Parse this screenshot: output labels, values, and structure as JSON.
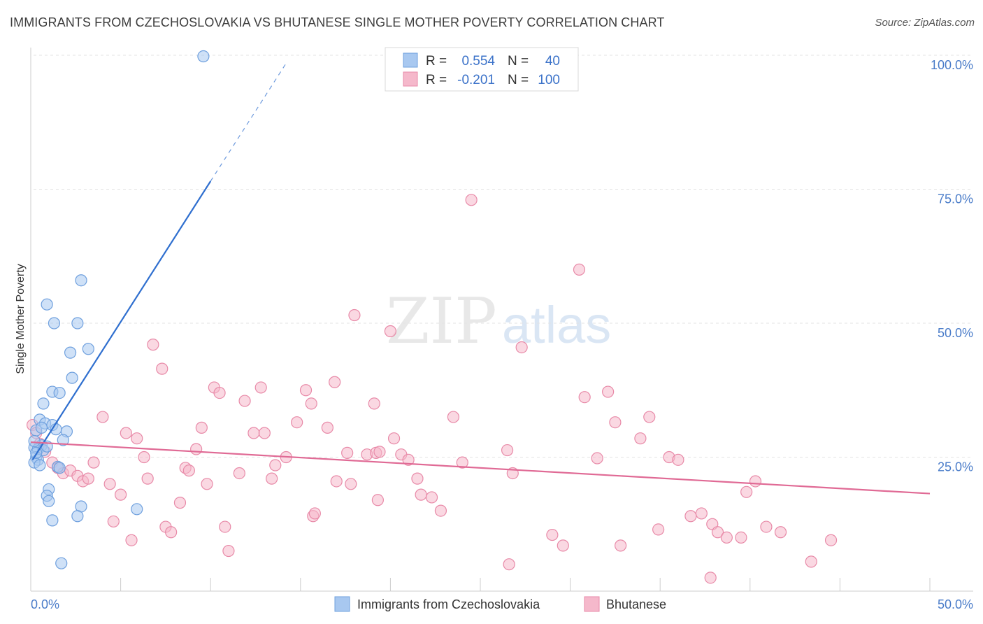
{
  "title": "IMMIGRANTS FROM CZECHOSLOVAKIA VS BHUTANESE SINGLE MOTHER POVERTY CORRELATION CHART",
  "source": "Source: ZipAtlas.com",
  "watermark": {
    "zip": "ZIP",
    "atlas": "atlas"
  },
  "colors": {
    "blue_fill": "#a8c8f0",
    "blue_stroke": "#6fa0de",
    "blue_line": "#2f6fcf",
    "pink_fill": "#f5b8cb",
    "pink_stroke": "#e88aa8",
    "pink_line": "#e06a95",
    "tick_text": "#4a7cc9",
    "grid": "#e3e3e3"
  },
  "legend": {
    "rows": [
      {
        "r_label": "R =",
        "r_value": "0.554",
        "n_label": "N =",
        "n_value": "40"
      },
      {
        "r_label": "R =",
        "r_value": "-0.201",
        "n_label": "N =",
        "n_value": "100"
      }
    ]
  },
  "chart_data": {
    "type": "scatter",
    "title": "IMMIGRANTS FROM CZECHOSLOVAKIA VS BHUTANESE SINGLE MOTHER POVERTY CORRELATION CHART",
    "xlabel": "",
    "ylabel": "Single Mother Poverty",
    "xlim": [
      0,
      50
    ],
    "ylim": [
      0,
      100
    ],
    "x_tick_labels": [
      "0.0%",
      "50.0%"
    ],
    "y_ticks": [
      25,
      50,
      75,
      100
    ],
    "y_tick_labels": [
      "25.0%",
      "50.0%",
      "75.0%",
      "100.0%"
    ],
    "grid": true,
    "legend_position": "top-center",
    "series": [
      {
        "name": "Immigrants from Czechoslovakia",
        "color": "#a8c8f0",
        "r": 0.554,
        "n": 40,
        "trend": {
          "x0": 0.1,
          "y0": 24.5,
          "x1": 10.0,
          "y1": 76.5,
          "dash_to_x": 14.2,
          "dash_to_y": 98.5
        },
        "points": [
          [
            9.6,
            99.8
          ],
          [
            2.8,
            58.0
          ],
          [
            0.9,
            53.5
          ],
          [
            1.3,
            50.0
          ],
          [
            2.6,
            50.0
          ],
          [
            2.2,
            44.5
          ],
          [
            3.2,
            45.2
          ],
          [
            2.3,
            39.8
          ],
          [
            1.2,
            37.2
          ],
          [
            1.6,
            37.0
          ],
          [
            0.7,
            35.0
          ],
          [
            0.5,
            32.0
          ],
          [
            0.8,
            31.3
          ],
          [
            1.2,
            31.0
          ],
          [
            1.4,
            30.2
          ],
          [
            2.0,
            29.8
          ],
          [
            0.3,
            30.0
          ],
          [
            1.8,
            28.2
          ],
          [
            0.6,
            27.2
          ],
          [
            0.2,
            26.8
          ],
          [
            0.4,
            26.5
          ],
          [
            0.7,
            26.3
          ],
          [
            0.3,
            25.0
          ],
          [
            0.4,
            24.5
          ],
          [
            0.2,
            24.0
          ],
          [
            0.5,
            23.5
          ],
          [
            1.5,
            23.2
          ],
          [
            1.0,
            19.0
          ],
          [
            0.9,
            17.8
          ],
          [
            1.0,
            16.8
          ],
          [
            2.8,
            15.8
          ],
          [
            5.9,
            15.3
          ],
          [
            2.6,
            14.0
          ],
          [
            1.2,
            13.2
          ],
          [
            1.7,
            5.2
          ],
          [
            0.2,
            28.0
          ],
          [
            0.9,
            27.0
          ],
          [
            0.3,
            25.8
          ],
          [
            1.6,
            23.0
          ],
          [
            0.6,
            30.5
          ]
        ]
      },
      {
        "name": "Bhutanese",
        "color": "#f5b8cb",
        "r": -0.201,
        "n": 100,
        "trend": {
          "x0": 0.0,
          "y0": 27.8,
          "x1": 50.0,
          "y1": 18.2
        },
        "points": [
          [
            0.1,
            31.0
          ],
          [
            0.3,
            29.5
          ],
          [
            0.5,
            27.5
          ],
          [
            0.8,
            26.0
          ],
          [
            1.2,
            24.0
          ],
          [
            1.5,
            23.0
          ],
          [
            1.8,
            22.0
          ],
          [
            2.2,
            22.5
          ],
          [
            2.6,
            21.5
          ],
          [
            2.9,
            20.5
          ],
          [
            3.2,
            21.0
          ],
          [
            3.5,
            24.0
          ],
          [
            4.0,
            32.5
          ],
          [
            4.4,
            20.0
          ],
          [
            4.6,
            13.0
          ],
          [
            5.0,
            18.0
          ],
          [
            5.3,
            29.5
          ],
          [
            5.6,
            9.5
          ],
          [
            5.9,
            28.5
          ],
          [
            6.3,
            25.0
          ],
          [
            6.5,
            21.0
          ],
          [
            6.8,
            46.0
          ],
          [
            7.3,
            41.5
          ],
          [
            7.5,
            12.0
          ],
          [
            7.8,
            11.0
          ],
          [
            8.3,
            16.5
          ],
          [
            8.6,
            23.0
          ],
          [
            8.8,
            22.5
          ],
          [
            9.2,
            26.5
          ],
          [
            9.5,
            30.5
          ],
          [
            9.8,
            20.0
          ],
          [
            10.2,
            38.0
          ],
          [
            10.5,
            37.0
          ],
          [
            10.8,
            12.0
          ],
          [
            11.0,
            7.5
          ],
          [
            11.6,
            22.0
          ],
          [
            11.9,
            35.5
          ],
          [
            12.4,
            29.5
          ],
          [
            12.8,
            38.0
          ],
          [
            13.0,
            29.5
          ],
          [
            13.4,
            21.0
          ],
          [
            13.6,
            23.5
          ],
          [
            14.2,
            25.0
          ],
          [
            14.8,
            31.5
          ],
          [
            15.3,
            37.5
          ],
          [
            15.6,
            35.0
          ],
          [
            15.7,
            14.0
          ],
          [
            15.8,
            14.5
          ],
          [
            16.5,
            30.5
          ],
          [
            16.9,
            39.0
          ],
          [
            17.0,
            20.5
          ],
          [
            17.6,
            25.8
          ],
          [
            17.8,
            20.0
          ],
          [
            18.0,
            51.5
          ],
          [
            18.7,
            25.5
          ],
          [
            19.1,
            35.0
          ],
          [
            19.2,
            25.8
          ],
          [
            19.4,
            26.0
          ],
          [
            19.3,
            17.0
          ],
          [
            20.0,
            48.5
          ],
          [
            20.2,
            28.5
          ],
          [
            20.6,
            25.5
          ],
          [
            21.0,
            24.5
          ],
          [
            21.5,
            21.0
          ],
          [
            21.7,
            18.0
          ],
          [
            22.3,
            17.5
          ],
          [
            22.8,
            15.0
          ],
          [
            23.5,
            32.5
          ],
          [
            24.0,
            24.0
          ],
          [
            24.5,
            73.0
          ],
          [
            26.5,
            26.3
          ],
          [
            26.6,
            5.0
          ],
          [
            26.8,
            22.0
          ],
          [
            27.3,
            45.5
          ],
          [
            29.0,
            10.5
          ],
          [
            29.6,
            8.5
          ],
          [
            30.5,
            60.0
          ],
          [
            30.8,
            36.2
          ],
          [
            31.5,
            24.8
          ],
          [
            32.1,
            37.2
          ],
          [
            32.5,
            31.5
          ],
          [
            32.8,
            8.5
          ],
          [
            33.9,
            28.5
          ],
          [
            34.4,
            32.5
          ],
          [
            34.9,
            11.5
          ],
          [
            35.5,
            25.0
          ],
          [
            36.0,
            24.5
          ],
          [
            36.7,
            14.0
          ],
          [
            37.3,
            14.5
          ],
          [
            37.8,
            2.5
          ],
          [
            37.9,
            12.5
          ],
          [
            38.2,
            11.0
          ],
          [
            38.7,
            10.0
          ],
          [
            39.5,
            10.0
          ],
          [
            39.8,
            18.5
          ],
          [
            40.3,
            20.5
          ],
          [
            40.9,
            12.0
          ],
          [
            41.7,
            11.0
          ],
          [
            43.4,
            5.5
          ],
          [
            44.5,
            9.5
          ]
        ]
      }
    ]
  }
}
